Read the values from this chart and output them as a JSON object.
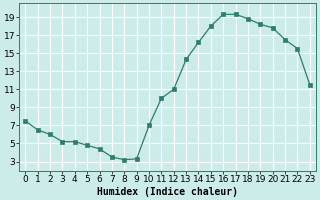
{
  "x": [
    0,
    1,
    2,
    3,
    4,
    5,
    6,
    7,
    8,
    9,
    10,
    11,
    12,
    13,
    14,
    15,
    16,
    17,
    18,
    19,
    20,
    21,
    22,
    23
  ],
  "y": [
    7.5,
    6.5,
    6.0,
    5.2,
    5.2,
    4.8,
    4.4,
    3.5,
    3.2,
    3.3,
    7.0,
    10.0,
    11.0,
    14.3,
    16.2,
    18.0,
    19.3,
    19.3,
    18.8,
    18.2,
    17.8,
    16.5,
    15.5,
    11.5
  ],
  "line_color": "#2e7d6e",
  "marker": "s",
  "marker_size": 2.5,
  "bg_color": "#ccecea",
  "grid_color": "#ffffff",
  "grid_minor_color": "#ddf0ee",
  "xlabel": "Humidex (Indice chaleur)",
  "yticks": [
    3,
    5,
    7,
    9,
    11,
    13,
    15,
    17,
    19
  ],
  "xticks": [
    0,
    1,
    2,
    3,
    4,
    5,
    6,
    7,
    8,
    9,
    10,
    11,
    12,
    13,
    14,
    15,
    16,
    17,
    18,
    19,
    20,
    21,
    22,
    23
  ],
  "xlim": [
    -0.5,
    23.5
  ],
  "ylim": [
    2.0,
    20.5
  ],
  "label_fontsize": 7,
  "tick_fontsize": 6.5
}
